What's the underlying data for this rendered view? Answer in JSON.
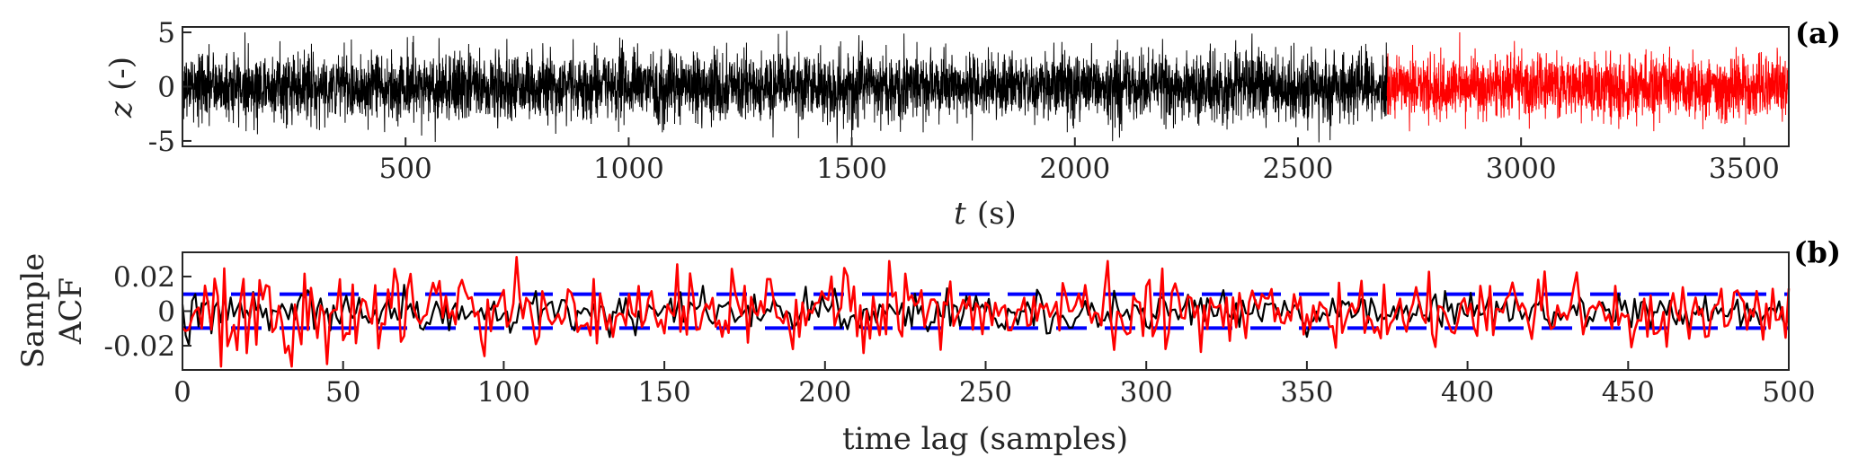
{
  "chart_data": [
    {
      "panel_label": "(a)",
      "type": "line",
      "xlabel_var": "t",
      "xlabel_unit": "(s)",
      "ylabel_var": "z",
      "ylabel_unit": "(-)",
      "xlim": [
        0,
        3600
      ],
      "ylim": [
        -5.5,
        5.5
      ],
      "xticks": [
        500,
        1000,
        1500,
        2000,
        2500,
        3000,
        3500
      ],
      "yticks": [
        -5,
        0,
        5
      ],
      "series": [
        {
          "x_range": [
            0,
            2700
          ],
          "color": "#000000",
          "sigma": 1.55,
          "max_abs": 5.2
        },
        {
          "x_range": [
            2700,
            3600
          ],
          "color": "#ff0000",
          "sigma": 1.4,
          "max_abs": 5.0
        }
      ]
    },
    {
      "panel_label": "(b)",
      "type": "line",
      "xlabel": "time lag (samples)",
      "ylabel_line1": "Sample",
      "ylabel_line2": "ACF",
      "xlim": [
        0,
        500
      ],
      "ylim": [
        -0.034,
        0.034
      ],
      "xticks": [
        0,
        50,
        100,
        150,
        200,
        250,
        300,
        350,
        400,
        450,
        500
      ],
      "yticks": [
        -0.02,
        0,
        0.02
      ],
      "ytick_labels": [
        "-0.02",
        "0",
        "0.02"
      ],
      "confidence_bounds": [
        -0.0098,
        0.0098
      ],
      "series": [
        {
          "color": "#000000",
          "sigma": 0.0055
        },
        {
          "color": "#ff0000",
          "sigma": 0.0105
        }
      ],
      "bound_color": "#0000ff"
    }
  ]
}
